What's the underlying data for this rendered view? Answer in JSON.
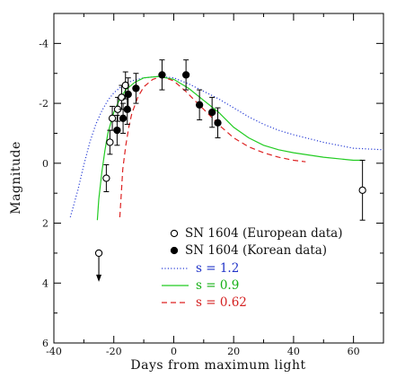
{
  "chart_data": {
    "type": "scatter",
    "xlabel": "Days from maximum light",
    "ylabel": "Magnitude",
    "xlim": [
      -40,
      70
    ],
    "ylim": [
      6,
      -5
    ],
    "y_inverted": true,
    "x_ticks": [
      -40,
      -20,
      0,
      20,
      40,
      60
    ],
    "y_ticks": [
      -4,
      -2,
      0,
      2,
      4,
      6
    ],
    "grid": false,
    "legend_position": "bottom-center",
    "series": [
      {
        "name": "SN 1604 (European data)",
        "kind": "points",
        "marker": "open-circle",
        "color": "#000000",
        "points": [
          {
            "x": -22.5,
            "y": 0.5,
            "yerr": 0.45
          },
          {
            "x": -21.3,
            "y": -0.7,
            "yerr": 0.4
          },
          {
            "x": -20.5,
            "y": -1.5,
            "yerr": 0.4
          },
          {
            "x": -18.7,
            "y": -1.8,
            "yerr": 0.4
          },
          {
            "x": -17.4,
            "y": -2.2,
            "yerr": 0.4
          },
          {
            "x": -16.1,
            "y": -2.6,
            "yerr": 0.45
          },
          {
            "x": 63,
            "y": 0.9,
            "yerr": 1.0
          }
        ],
        "upper_limits": [
          {
            "x": -25,
            "y": 3.0
          }
        ]
      },
      {
        "name": "SN 1604 (Korean data)",
        "kind": "points",
        "marker": "filled-circle",
        "color": "#000000",
        "points": [
          {
            "x": -18.9,
            "y": -1.1,
            "yerr": 0.5
          },
          {
            "x": -16.9,
            "y": -1.5,
            "yerr": 0.5
          },
          {
            "x": -15.5,
            "y": -1.8,
            "yerr": 0.5
          },
          {
            "x": -15.2,
            "y": -2.3,
            "yerr": 0.55
          },
          {
            "x": -12.6,
            "y": -2.5,
            "yerr": 0.5
          },
          {
            "x": -3.9,
            "y": -2.95,
            "yerr": 0.5
          },
          {
            "x": 4.1,
            "y": -2.95,
            "yerr": 0.5
          },
          {
            "x": 8.6,
            "y": -1.95,
            "yerr": 0.5
          },
          {
            "x": 12.8,
            "y": -1.7,
            "yerr": 0.5
          },
          {
            "x": 14.7,
            "y": -1.35,
            "yerr": 0.5
          }
        ]
      },
      {
        "name": "s = 1.2",
        "kind": "line",
        "style": "dotted",
        "color": "#2a3fd6",
        "label_color": "#2234c8",
        "points": [
          {
            "x": -34.5,
            "y": 1.8
          },
          {
            "x": -32,
            "y": 0.9
          },
          {
            "x": -30,
            "y": 0.05
          },
          {
            "x": -28,
            "y": -0.7
          },
          {
            "x": -26,
            "y": -1.3
          },
          {
            "x": -24,
            "y": -1.75
          },
          {
            "x": -22,
            "y": -2.1
          },
          {
            "x": -20,
            "y": -2.35
          },
          {
            "x": -17,
            "y": -2.6
          },
          {
            "x": -14,
            "y": -2.75
          },
          {
            "x": -10,
            "y": -2.85
          },
          {
            "x": -5,
            "y": -2.9
          },
          {
            "x": 0,
            "y": -2.85
          },
          {
            "x": 5,
            "y": -2.65
          },
          {
            "x": 10,
            "y": -2.4
          },
          {
            "x": 15,
            "y": -2.15
          },
          {
            "x": 20,
            "y": -1.85
          },
          {
            "x": 25,
            "y": -1.55
          },
          {
            "x": 30,
            "y": -1.3
          },
          {
            "x": 35,
            "y": -1.1
          },
          {
            "x": 40,
            "y": -0.95
          },
          {
            "x": 50,
            "y": -0.7
          },
          {
            "x": 60,
            "y": -0.5
          },
          {
            "x": 70,
            "y": -0.45
          }
        ]
      },
      {
        "name": "s = 0.9",
        "kind": "line",
        "style": "solid",
        "color": "#22cc22",
        "label_color": "#16b016",
        "points": [
          {
            "x": -25.5,
            "y": 1.9
          },
          {
            "x": -25,
            "y": 1.2
          },
          {
            "x": -24,
            "y": 0.3
          },
          {
            "x": -23,
            "y": -0.4
          },
          {
            "x": -22,
            "y": -1.0
          },
          {
            "x": -20,
            "y": -1.7
          },
          {
            "x": -18,
            "y": -2.15
          },
          {
            "x": -16,
            "y": -2.45
          },
          {
            "x": -13,
            "y": -2.7
          },
          {
            "x": -10,
            "y": -2.85
          },
          {
            "x": -5,
            "y": -2.9
          },
          {
            "x": 0,
            "y": -2.8
          },
          {
            "x": 5,
            "y": -2.5
          },
          {
            "x": 10,
            "y": -2.1
          },
          {
            "x": 15,
            "y": -1.7
          },
          {
            "x": 20,
            "y": -1.2
          },
          {
            "x": 25,
            "y": -0.85
          },
          {
            "x": 30,
            "y": -0.6
          },
          {
            "x": 35,
            "y": -0.45
          },
          {
            "x": 40,
            "y": -0.35
          },
          {
            "x": 50,
            "y": -0.2
          },
          {
            "x": 60,
            "y": -0.1
          },
          {
            "x": 63,
            "y": -0.1
          }
        ]
      },
      {
        "name": "s = 0.62",
        "kind": "line",
        "style": "dashed",
        "color": "#dd2222",
        "label_color": "#d42020",
        "points": [
          {
            "x": -18,
            "y": 1.8
          },
          {
            "x": -17.5,
            "y": 1.0
          },
          {
            "x": -17,
            "y": 0.2
          },
          {
            "x": -16,
            "y": -0.6
          },
          {
            "x": -15,
            "y": -1.2
          },
          {
            "x": -14,
            "y": -1.65
          },
          {
            "x": -12,
            "y": -2.2
          },
          {
            "x": -10,
            "y": -2.55
          },
          {
            "x": -7,
            "y": -2.8
          },
          {
            "x": -4,
            "y": -2.9
          },
          {
            "x": 0,
            "y": -2.75
          },
          {
            "x": 4,
            "y": -2.4
          },
          {
            "x": 8,
            "y": -2.0
          },
          {
            "x": 12,
            "y": -1.6
          },
          {
            "x": 16,
            "y": -1.2
          },
          {
            "x": 20,
            "y": -0.85
          },
          {
            "x": 25,
            "y": -0.55
          },
          {
            "x": 30,
            "y": -0.35
          },
          {
            "x": 35,
            "y": -0.2
          },
          {
            "x": 40,
            "y": -0.1
          },
          {
            "x": 44,
            "y": -0.05
          }
        ]
      }
    ]
  }
}
